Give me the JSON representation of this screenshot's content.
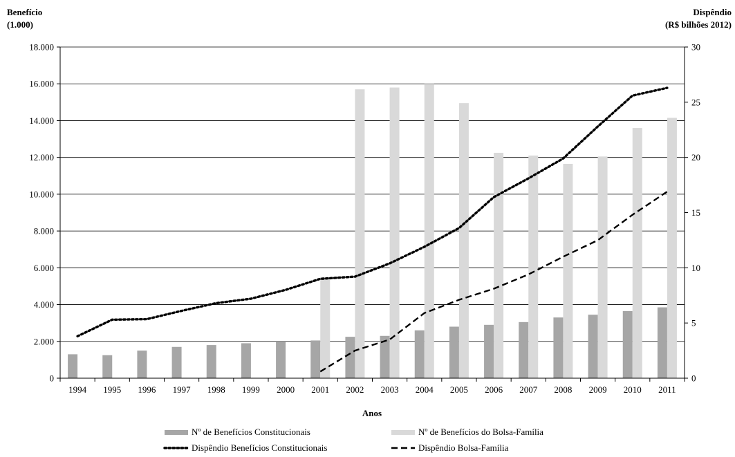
{
  "chart_data": {
    "type": "bar",
    "title": "",
    "xlabel": "Anos",
    "ylabel_left": [
      "Benefício",
      "(1.000)"
    ],
    "ylabel_right": [
      "Dispêndio",
      "(R$ bilhões 2012)"
    ],
    "ylim_left": [
      0,
      18000
    ],
    "ylim_right": [
      0,
      30
    ],
    "yticks_left": [
      "0",
      "2.000",
      "4.000",
      "6.000",
      "8.000",
      "10.000",
      "12.000",
      "14.000",
      "16.000",
      "18.000"
    ],
    "yticks_right": [
      "0",
      "5",
      "10",
      "15",
      "20",
      "25",
      "30"
    ],
    "categories": [
      "1994",
      "1995",
      "1996",
      "1997",
      "1998",
      "1999",
      "2000",
      "2001",
      "2002",
      "2003",
      "2004",
      "2005",
      "2006",
      "2007",
      "2008",
      "2009",
      "2010",
      "2011"
    ],
    "grid": "horizontal",
    "legend_position": "bottom",
    "series": [
      {
        "name": "Nº de Benefícios Constitucionais",
        "kind": "bar",
        "axis": "left",
        "color": "#a6a6a6",
        "values": [
          1300,
          1250,
          1500,
          1700,
          1800,
          1900,
          2000,
          2050,
          2250,
          2300,
          2600,
          2800,
          2900,
          3050,
          3300,
          3450,
          3650,
          3850
        ]
      },
      {
        "name": "Nº de Benefícios do Bolsa-Família",
        "kind": "bar",
        "axis": "left",
        "color": "#d9d9d9",
        "values": [
          null,
          null,
          null,
          null,
          null,
          null,
          null,
          5500,
          15700,
          15800,
          16000,
          14950,
          12250,
          12100,
          11650,
          12050,
          13600,
          14150
        ]
      },
      {
        "name": "Dispêndio Benefícios Constitucionais",
        "kind": "line",
        "style": "dotted",
        "axis": "right",
        "color": "#000000",
        "values": [
          3.8,
          5.3,
          5.35,
          6.1,
          6.8,
          7.2,
          8.0,
          9.0,
          9.2,
          10.4,
          11.9,
          13.6,
          16.4,
          18.1,
          19.9,
          22.8,
          25.6,
          26.3
        ]
      },
      {
        "name": "Dispêndio Bolsa-Família",
        "kind": "line",
        "style": "dashed",
        "axis": "right",
        "color": "#000000",
        "values": [
          null,
          null,
          null,
          null,
          null,
          null,
          null,
          0.6,
          2.5,
          3.5,
          5.9,
          7.1,
          8.1,
          9.4,
          11.0,
          12.5,
          14.8,
          16.9
        ]
      }
    ]
  }
}
